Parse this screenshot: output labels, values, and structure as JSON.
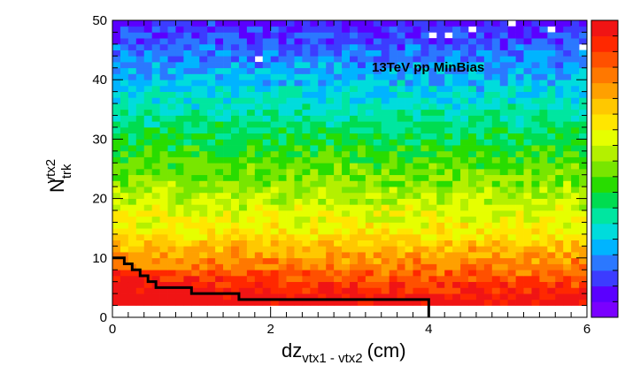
{
  "chart_data": {
    "type": "heatmap",
    "annotation": "13TeV pp MinBias",
    "xlabel": {
      "main": "dz",
      "sub": "vtx1 - vtx2",
      "unit": "(cm)"
    },
    "ylabel": {
      "main": "N",
      "sub": "trk",
      "sup": "vtx2"
    },
    "xlim": [
      0,
      6
    ],
    "ylim": [
      0,
      50
    ],
    "x_ticks": [
      "0",
      "2",
      "4",
      "6"
    ],
    "y_ticks": [
      "0",
      "10",
      "20",
      "30",
      "40",
      "50"
    ],
    "x_bins": 60,
    "y_bins": 50,
    "colormap": [
      "#7a00ff",
      "#5a00ff",
      "#3c3cff",
      "#2b78ff",
      "#00b4ff",
      "#00dcdc",
      "#00e6a0",
      "#00dc50",
      "#28dc00",
      "#78e600",
      "#b4f000",
      "#e6ff00",
      "#ffe600",
      "#ffc800",
      "#ffa000",
      "#ff7800",
      "#ff5000",
      "#ff2800",
      "#f01414"
    ],
    "missing_bins": [
      [
        19,
        44
      ],
      [
        41,
        48
      ],
      [
        43,
        48
      ],
      [
        46,
        49
      ],
      [
        51,
        50
      ],
      [
        56,
        49
      ],
      [
        60,
        46
      ]
    ],
    "cut_line": {
      "x": [
        0,
        0.15,
        0.15,
        0.25,
        0.25,
        0.35,
        0.35,
        0.45,
        0.45,
        0.55,
        0.55,
        0.7,
        0.7,
        1.0,
        1.0,
        1.6,
        1.6,
        4.0,
        4.0
      ],
      "y": [
        10,
        10,
        9,
        9,
        8,
        8,
        7,
        7,
        6,
        6,
        5,
        5,
        5,
        5,
        4,
        4,
        3,
        3,
        0
      ]
    }
  }
}
